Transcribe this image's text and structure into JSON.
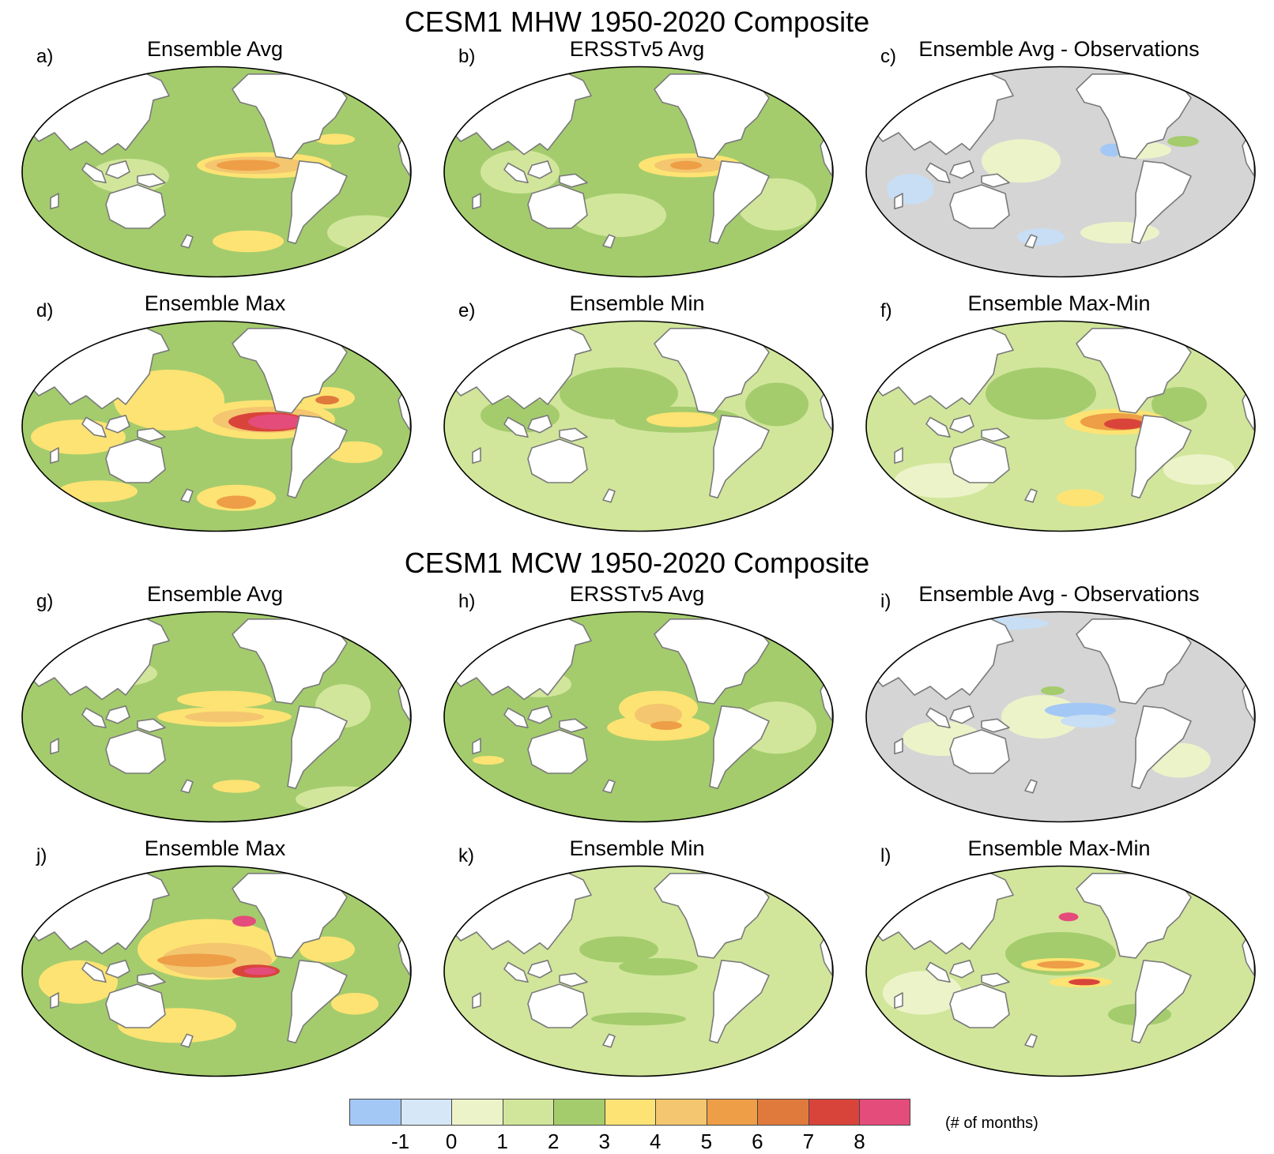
{
  "figure": {
    "title_mhw": "CESM1 MHW 1950-2020 Composite",
    "title_mcw": "CESM1 MCW 1950-2020 Composite"
  },
  "panels": [
    {
      "letter": "a)",
      "title": "Ensemble Avg",
      "base": "#a4cc6d",
      "blobs": [
        [
          "#d1e69b",
          0.28,
          0.52,
          0.1,
          0.08
        ],
        [
          "#a4cc6d",
          0.55,
          0.4,
          0.12,
          0.1
        ],
        [
          "#fde373",
          0.62,
          0.47,
          0.17,
          0.06
        ],
        [
          "#f3c66f",
          0.6,
          0.47,
          0.13,
          0.04
        ],
        [
          "#ee9e46",
          0.58,
          0.47,
          0.08,
          0.025
        ],
        [
          "#fde373",
          0.58,
          0.82,
          0.09,
          0.05
        ],
        [
          "#fde373",
          0.8,
          0.35,
          0.05,
          0.025
        ],
        [
          "#d1e69b",
          0.88,
          0.78,
          0.1,
          0.08
        ]
      ]
    },
    {
      "letter": "b)",
      "title": "ERSSTv5 Avg",
      "base": "#a4cc6d",
      "blobs": [
        [
          "#d1e69b",
          0.2,
          0.5,
          0.1,
          0.1
        ],
        [
          "#d1e69b",
          0.45,
          0.7,
          0.12,
          0.1
        ],
        [
          "#fde373",
          0.63,
          0.47,
          0.13,
          0.055
        ],
        [
          "#f3c66f",
          0.63,
          0.47,
          0.09,
          0.035
        ],
        [
          "#ee9e46",
          0.62,
          0.47,
          0.04,
          0.02
        ],
        [
          "#d1e69b",
          0.85,
          0.65,
          0.1,
          0.12
        ]
      ]
    },
    {
      "letter": "c)",
      "title": "Ensemble Avg - Observations",
      "base": "#d5d5d5",
      "blobs": [
        [
          "#edf3c9",
          0.4,
          0.45,
          0.1,
          0.1
        ],
        [
          "#c7def5",
          0.12,
          0.58,
          0.06,
          0.07
        ],
        [
          "#edf3c9",
          0.7,
          0.4,
          0.08,
          0.04
        ],
        [
          "#a4cc6d",
          0.81,
          0.36,
          0.04,
          0.025
        ],
        [
          "#a4c8f5",
          0.63,
          0.4,
          0.03,
          0.03
        ],
        [
          "#edf3c9",
          0.65,
          0.78,
          0.1,
          0.05
        ],
        [
          "#c7def5",
          0.45,
          0.8,
          0.06,
          0.04
        ],
        [
          "#edf3c9",
          0.2,
          0.22,
          0.12,
          0.05
        ]
      ]
    },
    {
      "letter": "d)",
      "title": "Ensemble Max",
      "base": "#a4cc6d",
      "blobs": [
        [
          "#fde373",
          0.38,
          0.38,
          0.14,
          0.14
        ],
        [
          "#fde373",
          0.62,
          0.47,
          0.18,
          0.09
        ],
        [
          "#f3c66f",
          0.63,
          0.47,
          0.14,
          0.06
        ],
        [
          "#d9443a",
          0.63,
          0.48,
          0.1,
          0.045
        ],
        [
          "#e44c7c",
          0.65,
          0.48,
          0.07,
          0.035
        ],
        [
          "#fde373",
          0.15,
          0.55,
          0.12,
          0.08
        ],
        [
          "#fde373",
          0.55,
          0.83,
          0.1,
          0.06
        ],
        [
          "#ee9e46",
          0.55,
          0.85,
          0.05,
          0.03
        ],
        [
          "#fde373",
          0.78,
          0.37,
          0.07,
          0.05
        ],
        [
          "#e07a3c",
          0.78,
          0.38,
          0.03,
          0.02
        ],
        [
          "#fde373",
          0.85,
          0.62,
          0.07,
          0.05
        ],
        [
          "#fde373",
          0.2,
          0.8,
          0.1,
          0.05
        ]
      ]
    },
    {
      "letter": "e)",
      "title": "Ensemble Min",
      "base": "#d1e69b",
      "blobs": [
        [
          "#a4cc6d",
          0.45,
          0.35,
          0.15,
          0.12
        ],
        [
          "#a4cc6d",
          0.6,
          0.47,
          0.16,
          0.06
        ],
        [
          "#fde373",
          0.61,
          0.47,
          0.09,
          0.035
        ],
        [
          "#a4cc6d",
          0.85,
          0.4,
          0.08,
          0.1
        ],
        [
          "#a4cc6d",
          0.2,
          0.45,
          0.1,
          0.08
        ]
      ]
    },
    {
      "letter": "f)",
      "title": "Ensemble Max-Min",
      "base": "#d1e69b",
      "blobs": [
        [
          "#a4cc6d",
          0.45,
          0.35,
          0.14,
          0.12
        ],
        [
          "#edf3c9",
          0.2,
          0.75,
          0.12,
          0.08
        ],
        [
          "#a4cc6d",
          0.8,
          0.4,
          0.07,
          0.08
        ],
        [
          "#fde373",
          0.64,
          0.48,
          0.13,
          0.06
        ],
        [
          "#ee9e46",
          0.64,
          0.48,
          0.09,
          0.04
        ],
        [
          "#d9443a",
          0.66,
          0.49,
          0.05,
          0.025
        ],
        [
          "#fde373",
          0.55,
          0.83,
          0.06,
          0.04
        ],
        [
          "#edf3c9",
          0.85,
          0.7,
          0.09,
          0.07
        ]
      ]
    },
    {
      "letter": "g)",
      "title": "Ensemble Avg",
      "base": "#a4cc6d",
      "blobs": [
        [
          "#d1e69b",
          0.82,
          0.88,
          0.12,
          0.06
        ],
        [
          "#d1e69b",
          0.25,
          0.3,
          0.1,
          0.06
        ],
        [
          "#fde373",
          0.52,
          0.42,
          0.12,
          0.04
        ],
        [
          "#fde373",
          0.52,
          0.5,
          0.17,
          0.045
        ],
        [
          "#f3c66f",
          0.52,
          0.5,
          0.1,
          0.025
        ],
        [
          "#fde373",
          0.55,
          0.82,
          0.06,
          0.03
        ],
        [
          "#d1e69b",
          0.82,
          0.45,
          0.07,
          0.1
        ]
      ]
    },
    {
      "letter": "h)",
      "title": "ERSSTv5 Avg",
      "base": "#a4cc6d",
      "blobs": [
        [
          "#d1e69b",
          0.85,
          0.55,
          0.1,
          0.12
        ],
        [
          "#d1e69b",
          0.25,
          0.35,
          0.08,
          0.06
        ],
        [
          "#fde373",
          0.55,
          0.46,
          0.1,
          0.08
        ],
        [
          "#fde373",
          0.55,
          0.55,
          0.13,
          0.06
        ],
        [
          "#f3c66f",
          0.55,
          0.49,
          0.06,
          0.05
        ],
        [
          "#ee9e46",
          0.57,
          0.54,
          0.04,
          0.02
        ],
        [
          "#fde373",
          0.12,
          0.7,
          0.04,
          0.02
        ]
      ]
    },
    {
      "letter": "i)",
      "title": "Ensemble Avg - Observations",
      "base": "#d5d5d5",
      "blobs": [
        [
          "#edf3c9",
          0.45,
          0.5,
          0.1,
          0.1
        ],
        [
          "#a4c8f5",
          0.55,
          0.47,
          0.09,
          0.035
        ],
        [
          "#c7def5",
          0.57,
          0.52,
          0.07,
          0.03
        ],
        [
          "#edf3c9",
          0.2,
          0.6,
          0.1,
          0.08
        ],
        [
          "#a4cc6d",
          0.48,
          0.38,
          0.03,
          0.02
        ],
        [
          "#edf3c9",
          0.8,
          0.7,
          0.08,
          0.08
        ],
        [
          "#c7def5",
          0.35,
          0.07,
          0.12,
          0.03
        ]
      ]
    },
    {
      "letter": "j)",
      "title": "Ensemble Max",
      "base": "#a4cc6d",
      "blobs": [
        [
          "#fde373",
          0.48,
          0.4,
          0.18,
          0.14
        ],
        [
          "#f3c66f",
          0.5,
          0.45,
          0.14,
          0.08
        ],
        [
          "#fde373",
          0.4,
          0.75,
          0.15,
          0.08
        ],
        [
          "#fde373",
          0.15,
          0.55,
          0.1,
          0.1
        ],
        [
          "#ee9e46",
          0.45,
          0.45,
          0.1,
          0.03
        ],
        [
          "#e44c7c",
          0.57,
          0.27,
          0.03,
          0.025
        ],
        [
          "#d9443a",
          0.6,
          0.5,
          0.06,
          0.03
        ],
        [
          "#e44c7c",
          0.61,
          0.5,
          0.04,
          0.018
        ],
        [
          "#fde373",
          0.78,
          0.4,
          0.07,
          0.06
        ],
        [
          "#fde373",
          0.85,
          0.65,
          0.06,
          0.05
        ],
        [
          "#d9443a",
          0.79,
          0.06,
          0.03,
          0.03
        ]
      ]
    },
    {
      "letter": "k)",
      "title": "Ensemble Min",
      "base": "#d1e69b",
      "blobs": [
        [
          "#a4cc6d",
          0.45,
          0.4,
          0.1,
          0.06
        ],
        [
          "#a4cc6d",
          0.55,
          0.48,
          0.1,
          0.04
        ],
        [
          "#a4cc6d",
          0.5,
          0.72,
          0.12,
          0.03
        ]
      ]
    },
    {
      "letter": "l)",
      "title": "Ensemble Max-Min",
      "base": "#d1e69b",
      "blobs": [
        [
          "#a4cc6d",
          0.5,
          0.42,
          0.14,
          0.1
        ],
        [
          "#edf3c9",
          0.15,
          0.6,
          0.1,
          0.1
        ],
        [
          "#fde373",
          0.5,
          0.47,
          0.1,
          0.03
        ],
        [
          "#ee9e46",
          0.5,
          0.47,
          0.06,
          0.018
        ],
        [
          "#e44c7c",
          0.52,
          0.25,
          0.025,
          0.02
        ],
        [
          "#fde373",
          0.55,
          0.55,
          0.08,
          0.025
        ],
        [
          "#d9443a",
          0.56,
          0.55,
          0.04,
          0.015
        ],
        [
          "#a4cc6d",
          0.7,
          0.7,
          0.08,
          0.05
        ],
        [
          "#e44c7c",
          0.8,
          0.07,
          0.02,
          0.025
        ]
      ]
    }
  ],
  "colorbar": {
    "colors": [
      "#a4c8f5",
      "#d6e8f8",
      "#edf3c9",
      "#d1e69b",
      "#a4cc6d",
      "#fde373",
      "#f3c66f",
      "#ee9e46",
      "#e07a3c",
      "#d9443a",
      "#e44c7c"
    ],
    "tick_labels": [
      "-1",
      "0",
      "1",
      "2",
      "3",
      "4",
      "5",
      "6",
      "7",
      "8"
    ],
    "units": "(# of months)"
  },
  "style": {
    "land": "#ffffff",
    "coast": "#7a7a7a",
    "frame": "#000000"
  }
}
